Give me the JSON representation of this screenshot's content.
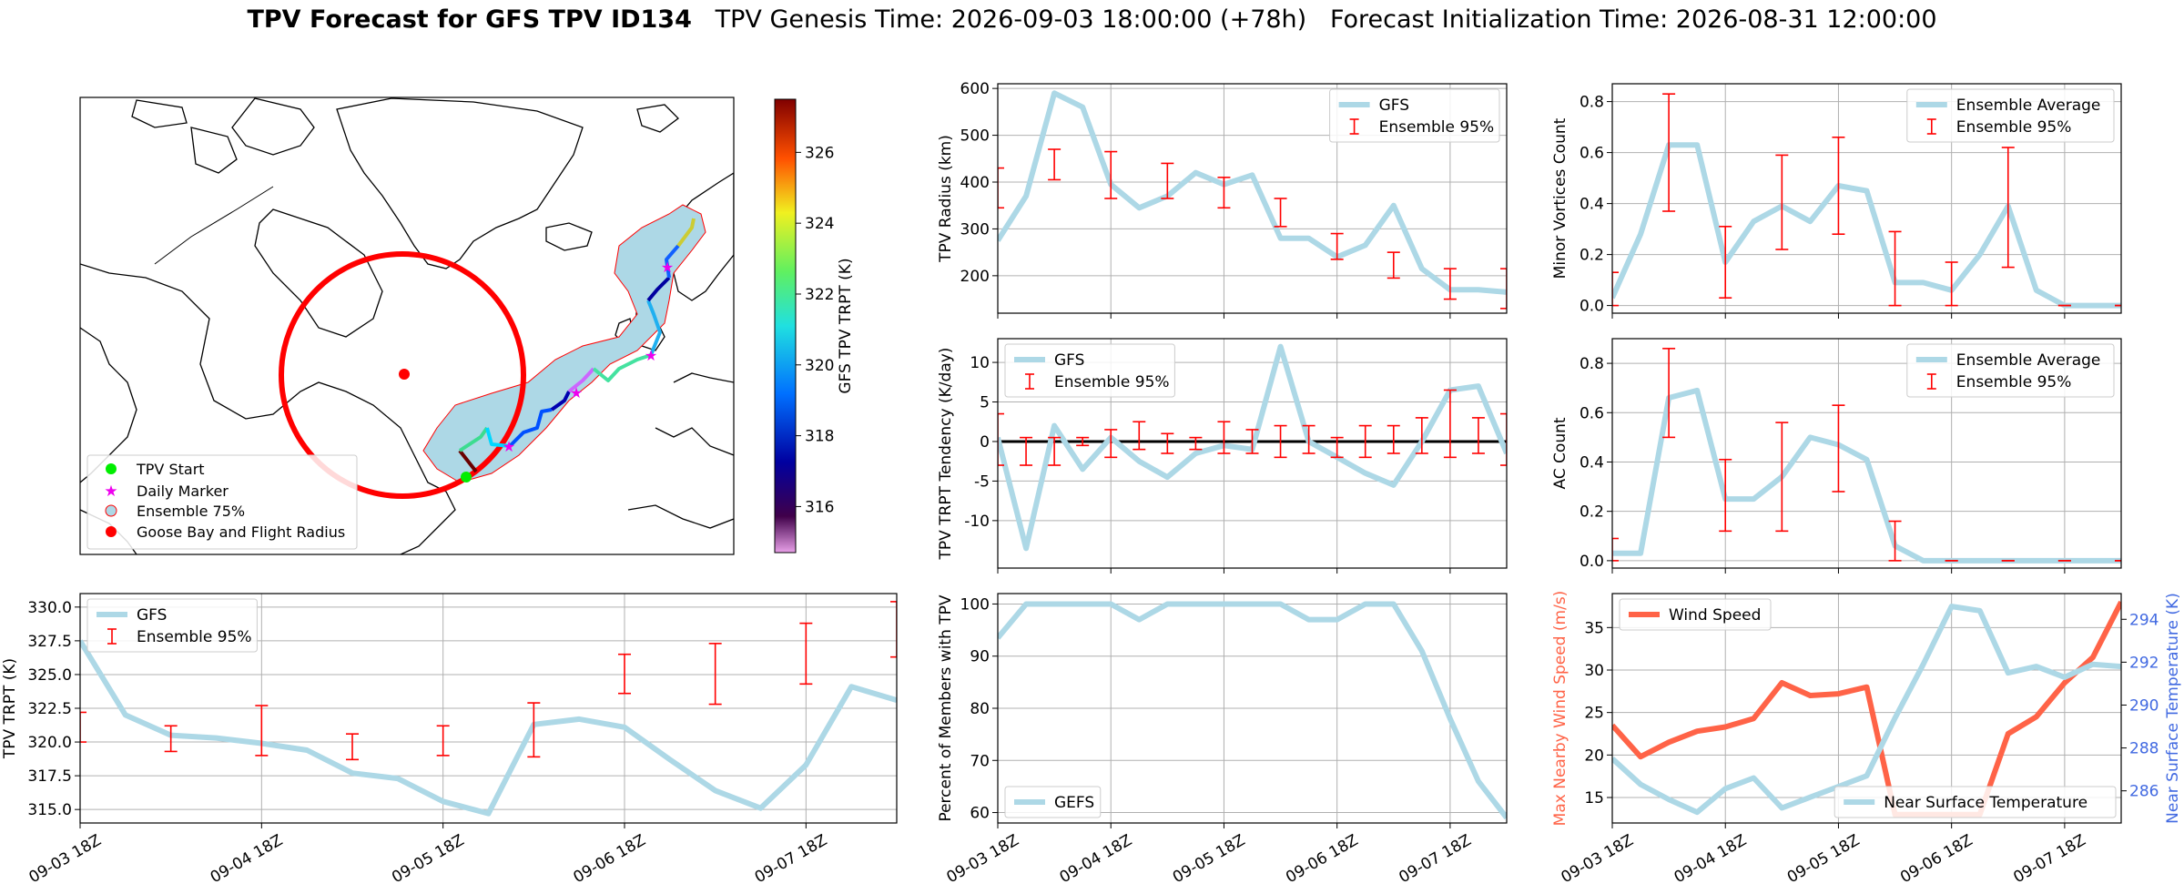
{
  "header": {
    "title_main": "TPV Forecast for GFS TPV ID134",
    "title_genesis": "TPV Genesis Time: 2026-09-03 18:00:00 (+78h)",
    "title_init": "Forecast Initialization Time: 2026-08-31 12:00:00"
  },
  "colors": {
    "gfs": "#add8e6",
    "ensemble": "#ff0000",
    "wind": "#ff6347",
    "temp_axis": "#4169e1",
    "goose": "#ff0000",
    "start": "#00ee00",
    "marker": "#ee00ee"
  },
  "map_panel": {
    "colorbar_label": "GFS TPV TRPT (K)",
    "colorbar_ticks": [
      "316",
      "318",
      "320",
      "322",
      "324",
      "326"
    ],
    "colorbar_range": [
      314.7,
      327.5
    ],
    "legend": [
      "TPV Start",
      "Daily Marker",
      "Ensemble 75%",
      "Goose Bay and Flight Radius"
    ]
  },
  "chart_data": [
    {
      "id": "radius",
      "type": "line",
      "ylabel": "TPV Radius (km)",
      "xlabel": "",
      "ylim": [
        120,
        610
      ],
      "yticks": [
        200,
        300,
        400,
        500,
        600
      ],
      "legend": "top-right",
      "grid": true,
      "series": [
        {
          "name": "GFS",
          "x": [
            0,
            0.25,
            0.5,
            0.75,
            1,
            1.25,
            1.5,
            1.75,
            2,
            2.25,
            2.5,
            2.75,
            3,
            3.25,
            3.5,
            3.75,
            4,
            4.25,
            4.5
          ],
          "values": [
            275,
            370,
            590,
            560,
            395,
            345,
            370,
            420,
            395,
            415,
            280,
            280,
            240,
            265,
            350,
            215,
            170,
            170,
            165
          ]
        }
      ],
      "errorbars": {
        "name": "Ensemble 95%",
        "x": [
          0,
          0.5,
          1,
          1.5,
          2,
          2.5,
          3,
          3.5,
          4,
          4.5
        ],
        "low": [
          345,
          405,
          365,
          365,
          345,
          305,
          235,
          195,
          150,
          130
        ],
        "high": [
          430,
          470,
          465,
          440,
          410,
          365,
          290,
          250,
          215,
          215
        ]
      }
    },
    {
      "id": "minor",
      "type": "line",
      "ylabel": "Minor Vortices Count",
      "ylim": [
        -0.03,
        0.87
      ],
      "yticks": [
        "0.0",
        "0.2",
        "0.4",
        "0.6",
        "0.8"
      ],
      "legend": "top-right",
      "grid": true,
      "series": [
        {
          "name": "Ensemble Average",
          "x": [
            0,
            0.25,
            0.5,
            0.75,
            1,
            1.25,
            1.5,
            1.75,
            2,
            2.25,
            2.5,
            2.75,
            3,
            3.25,
            3.5,
            3.75,
            4,
            4.25,
            4.5
          ],
          "values": [
            0.03,
            0.28,
            0.63,
            0.63,
            0.17,
            0.33,
            0.39,
            0.33,
            0.47,
            0.45,
            0.09,
            0.09,
            0.06,
            0.2,
            0.39,
            0.06,
            0,
            0,
            0
          ]
        }
      ],
      "errorbars": {
        "name": "Ensemble 95%",
        "x": [
          0,
          0.5,
          1,
          1.5,
          2,
          2.5,
          3,
          3.5,
          4,
          4.5
        ],
        "low": [
          0,
          0.37,
          0.03,
          0.22,
          0.28,
          0,
          0,
          0.15,
          0,
          0
        ],
        "high": [
          0.13,
          0.83,
          0.31,
          0.59,
          0.66,
          0.29,
          0.17,
          0.62,
          0,
          0
        ]
      }
    },
    {
      "id": "tendency",
      "type": "line",
      "ylabel": "TPV TRPT Tendency (K/day)",
      "ylim": [
        -16,
        13
      ],
      "yticks": [
        -10,
        -5,
        0,
        5,
        10
      ],
      "legend": "top-left",
      "grid": true,
      "series": [
        {
          "name": "GFS",
          "x": [
            0,
            0.25,
            0.5,
            0.75,
            1,
            1.25,
            1.5,
            1.75,
            2,
            2.25,
            2.5,
            2.75,
            3,
            3.25,
            3.5,
            3.75,
            4,
            4.25,
            4.5
          ],
          "values": [
            0.5,
            -13.5,
            2,
            -3.5,
            0.5,
            -2.5,
            -4.5,
            -1.5,
            -0.5,
            -1,
            12,
            0,
            -2,
            -4,
            -5.5,
            0,
            6.5,
            7,
            -1.5
          ]
        }
      ],
      "errorbars": {
        "name": "Ensemble 95%",
        "x": [
          0,
          0.25,
          0.5,
          0.75,
          1,
          1.25,
          1.5,
          1.75,
          2,
          2.25,
          2.5,
          2.75,
          3,
          3.25,
          3.5,
          3.75,
          4,
          4.25,
          4.5
        ],
        "low": [
          -3,
          -3,
          -3,
          -0.5,
          -2,
          -1,
          -1.5,
          -1,
          -1.5,
          -1.5,
          -2,
          -1.5,
          -2,
          -2,
          -1.5,
          -1.5,
          -2,
          -1.5,
          -3
        ],
        "high": [
          3.5,
          0.5,
          0.5,
          0.5,
          1.5,
          2.5,
          1,
          0.5,
          2.5,
          1.5,
          2,
          2,
          0.5,
          2,
          2,
          3,
          6.5,
          3,
          3.5
        ]
      }
    },
    {
      "id": "ac",
      "type": "line",
      "ylabel": "AC Count",
      "ylim": [
        -0.03,
        0.9
      ],
      "yticks": [
        "0.0",
        "0.2",
        "0.4",
        "0.6",
        "0.8"
      ],
      "legend": "top-right",
      "grid": true,
      "series": [
        {
          "name": "Ensemble Average",
          "x": [
            0,
            0.25,
            0.5,
            0.75,
            1,
            1.25,
            1.5,
            1.75,
            2,
            2.25,
            2.5,
            2.75,
            3,
            3.25,
            3.5,
            3.75,
            4,
            4.25,
            4.5
          ],
          "values": [
            0.03,
            0.03,
            0.66,
            0.69,
            0.25,
            0.25,
            0.34,
            0.5,
            0.47,
            0.41,
            0.06,
            0,
            0,
            0,
            0,
            0,
            0,
            0,
            0
          ]
        }
      ],
      "errorbars": {
        "name": "Ensemble 95%",
        "x": [
          0,
          0.5,
          1,
          1.5,
          2,
          2.5,
          3,
          3.5,
          4,
          4.5
        ],
        "low": [
          0,
          0.5,
          0.12,
          0.12,
          0.28,
          0,
          0,
          0,
          0,
          0
        ],
        "high": [
          0.09,
          0.86,
          0.41,
          0.56,
          0.63,
          0.16,
          0,
          0,
          0,
          0
        ]
      }
    },
    {
      "id": "trpt",
      "type": "line",
      "ylabel": "TPV TRPT (K)",
      "ylim": [
        314,
        331
      ],
      "yticks": [
        "315.0",
        "317.5",
        "320.0",
        "322.5",
        "325.0",
        "327.5",
        "330.0"
      ],
      "legend": "top-left",
      "grid": true,
      "series": [
        {
          "name": "GFS",
          "x": [
            0,
            0.25,
            0.5,
            0.75,
            1,
            1.25,
            1.5,
            1.75,
            2,
            2.25,
            2.5,
            2.75,
            3,
            3.25,
            3.5,
            3.75,
            4,
            4.25,
            4.5
          ],
          "values": [
            327.5,
            322,
            320.5,
            320.3,
            319.9,
            319.4,
            317.7,
            317.3,
            315.6,
            314.7,
            321.3,
            321.7,
            321.1,
            318.7,
            316.4,
            315.1,
            318.3,
            324.1,
            323.1
          ]
        }
      ],
      "errorbars": {
        "name": "Ensemble 95%",
        "x": [
          0,
          0.5,
          1,
          1.5,
          2,
          2.5,
          3,
          3.5,
          4,
          4.5
        ],
        "low": [
          320,
          319.3,
          319,
          318.7,
          319,
          318.9,
          323.6,
          322.8,
          324.3,
          326.3
        ],
        "high": [
          322.2,
          321.2,
          322.7,
          320.6,
          321.2,
          322.9,
          326.5,
          327.3,
          328.8,
          330.4
        ]
      }
    },
    {
      "id": "percent",
      "type": "line",
      "ylabel": "Percent of Members with TPV",
      "ylim": [
        58,
        102
      ],
      "yticks": [
        60,
        70,
        80,
        90,
        100
      ],
      "legend": "bottom-left",
      "grid": true,
      "series": [
        {
          "name": "GEFS",
          "x": [
            0,
            0.25,
            0.5,
            0.75,
            1,
            1.25,
            1.5,
            1.75,
            2,
            2.25,
            2.5,
            2.75,
            3,
            3.25,
            3.5,
            3.75,
            4,
            4.25,
            4.5
          ],
          "values": [
            93.5,
            100,
            100,
            100,
            100,
            97,
            100,
            100,
            100,
            100,
            100,
            97,
            97,
            100,
            100,
            91,
            78,
            66,
            59
          ]
        }
      ]
    },
    {
      "id": "wind",
      "type": "line",
      "ylabel": "Max Nearby Wind Speed (m/s)",
      "y2label": "Near Surface Temperature (K)",
      "ylim": [
        12,
        39
      ],
      "yticks": [
        15,
        20,
        25,
        30,
        35
      ],
      "y2lim": [
        284.5,
        295.2
      ],
      "y2ticks": [
        286,
        288,
        290,
        292,
        294
      ],
      "grid": true,
      "series": [
        {
          "name": "Wind Speed",
          "axis": "left",
          "x": [
            0,
            0.25,
            0.5,
            0.75,
            1,
            1.25,
            1.5,
            1.75,
            2,
            2.25,
            2.5,
            2.75,
            3,
            3.25,
            3.5,
            3.75,
            4,
            4.25,
            4.5
          ],
          "values": [
            23.5,
            19.8,
            21.5,
            22.8,
            23.3,
            24.3,
            28.5,
            27,
            27.2,
            28,
            13,
            13,
            13,
            13,
            22.5,
            24.5,
            28.5,
            31.5,
            38
          ]
        },
        {
          "name": "Near Surface Temperature",
          "axis": "right",
          "x": [
            0,
            0.25,
            0.5,
            0.75,
            1,
            1.25,
            1.5,
            1.75,
            2,
            2.25,
            2.5,
            2.75,
            3,
            3.25,
            3.5,
            3.75,
            4,
            4.25,
            4.5
          ],
          "values": [
            287.5,
            286.3,
            285.6,
            285,
            286.1,
            286.6,
            285.2,
            285.7,
            286.2,
            286.7,
            289.4,
            291.9,
            294.6,
            294.4,
            291.5,
            291.8,
            291.3,
            291.9,
            291.8
          ]
        }
      ]
    }
  ],
  "x_ticks": [
    "09-03 18Z",
    "09-04 18Z",
    "09-05 18Z",
    "09-06 18Z",
    "09-07 18Z"
  ]
}
